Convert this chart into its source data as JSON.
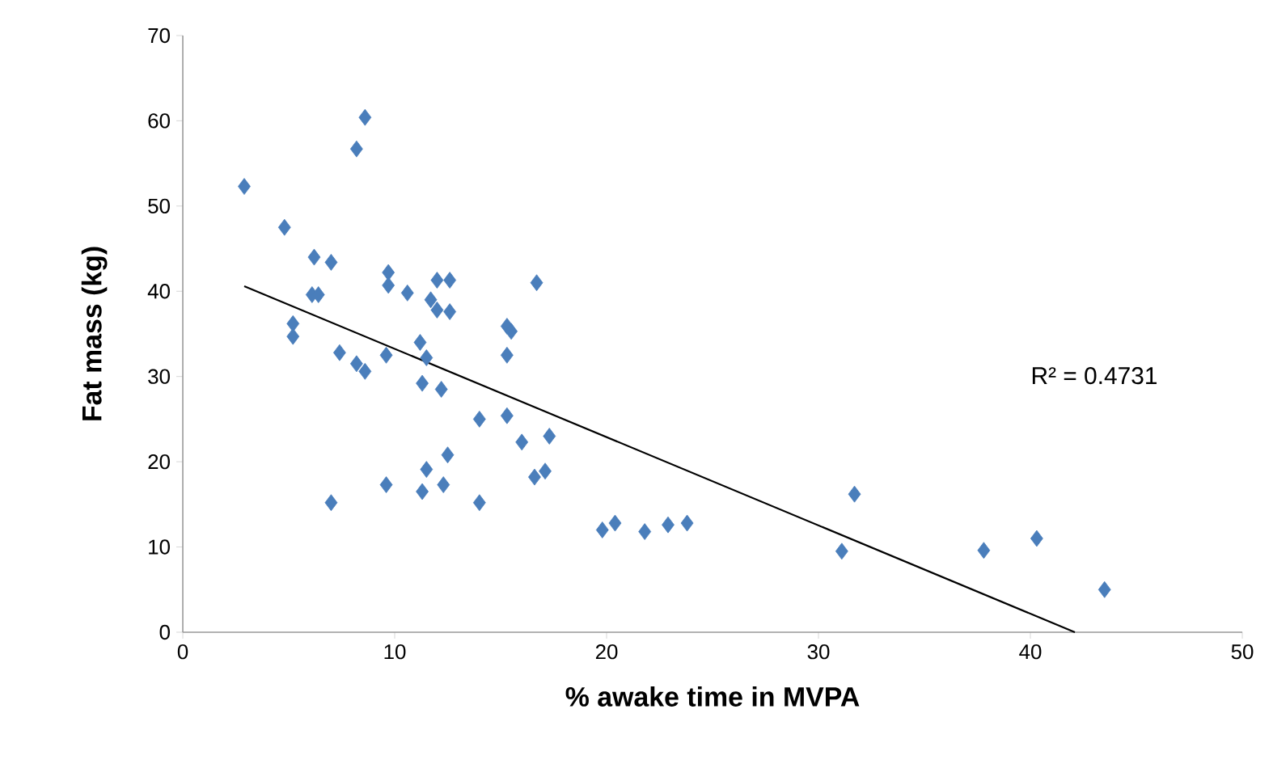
{
  "chart_data": {
    "type": "scatter",
    "xlabel": "% awake time in MVPA",
    "ylabel": "Fat mass (kg)",
    "xlim": [
      0,
      50
    ],
    "xticks": [
      0,
      10,
      20,
      30,
      40,
      50
    ],
    "ylim": [
      0,
      70
    ],
    "yticks": [
      0,
      10,
      20,
      30,
      40,
      50,
      60,
      70
    ],
    "marker": "diamond",
    "annotations": [
      "R² = 0.4731"
    ],
    "series": [
      {
        "color": "#4a7ebb",
        "x": [
          2.9,
          4.8,
          8.2,
          8.6,
          6.2,
          7.0,
          6.1,
          6.4,
          5.2,
          5.2,
          7.4,
          8.2,
          8.6,
          9.7,
          9.7,
          10.6,
          9.6,
          11.2,
          11.7,
          12.0,
          12.6,
          12.0,
          12.6,
          11.5,
          11.3,
          12.2,
          15.3,
          15.5,
          15.3,
          16.7,
          15.3,
          14.0,
          16.0,
          17.3,
          16.6,
          17.1,
          12.5,
          11.5,
          11.3,
          12.3,
          9.6,
          7.0,
          14.0,
          19.8,
          20.4,
          21.8,
          22.9,
          23.8,
          31.1,
          31.7,
          37.8,
          40.3,
          43.5
        ],
        "values": [
          52.3,
          47.5,
          56.7,
          60.4,
          44,
          43.4,
          39.6,
          39.6,
          36.2,
          34.7,
          32.8,
          31.5,
          30.6,
          42.2,
          40.7,
          39.8,
          32.5,
          34,
          39,
          41.3,
          41.3,
          37.8,
          37.6,
          32.2,
          29.2,
          28.5,
          35.9,
          35.3,
          32.5,
          41,
          25.4,
          25,
          22.3,
          23,
          18.2,
          18.9,
          20.8,
          19.1,
          16.5,
          17.3,
          17.3,
          15.2,
          15.2,
          12,
          12.8,
          11.8,
          12.6,
          12.8,
          9.5,
          16.2,
          9.6,
          11.0,
          5.0
        ]
      },
      {
        "type": "line",
        "color": "#000000",
        "marker": "none",
        "line_style": "solid",
        "x": [
          2.9,
          42.1
        ],
        "values": [
          40.6,
          0
        ]
      }
    ]
  }
}
